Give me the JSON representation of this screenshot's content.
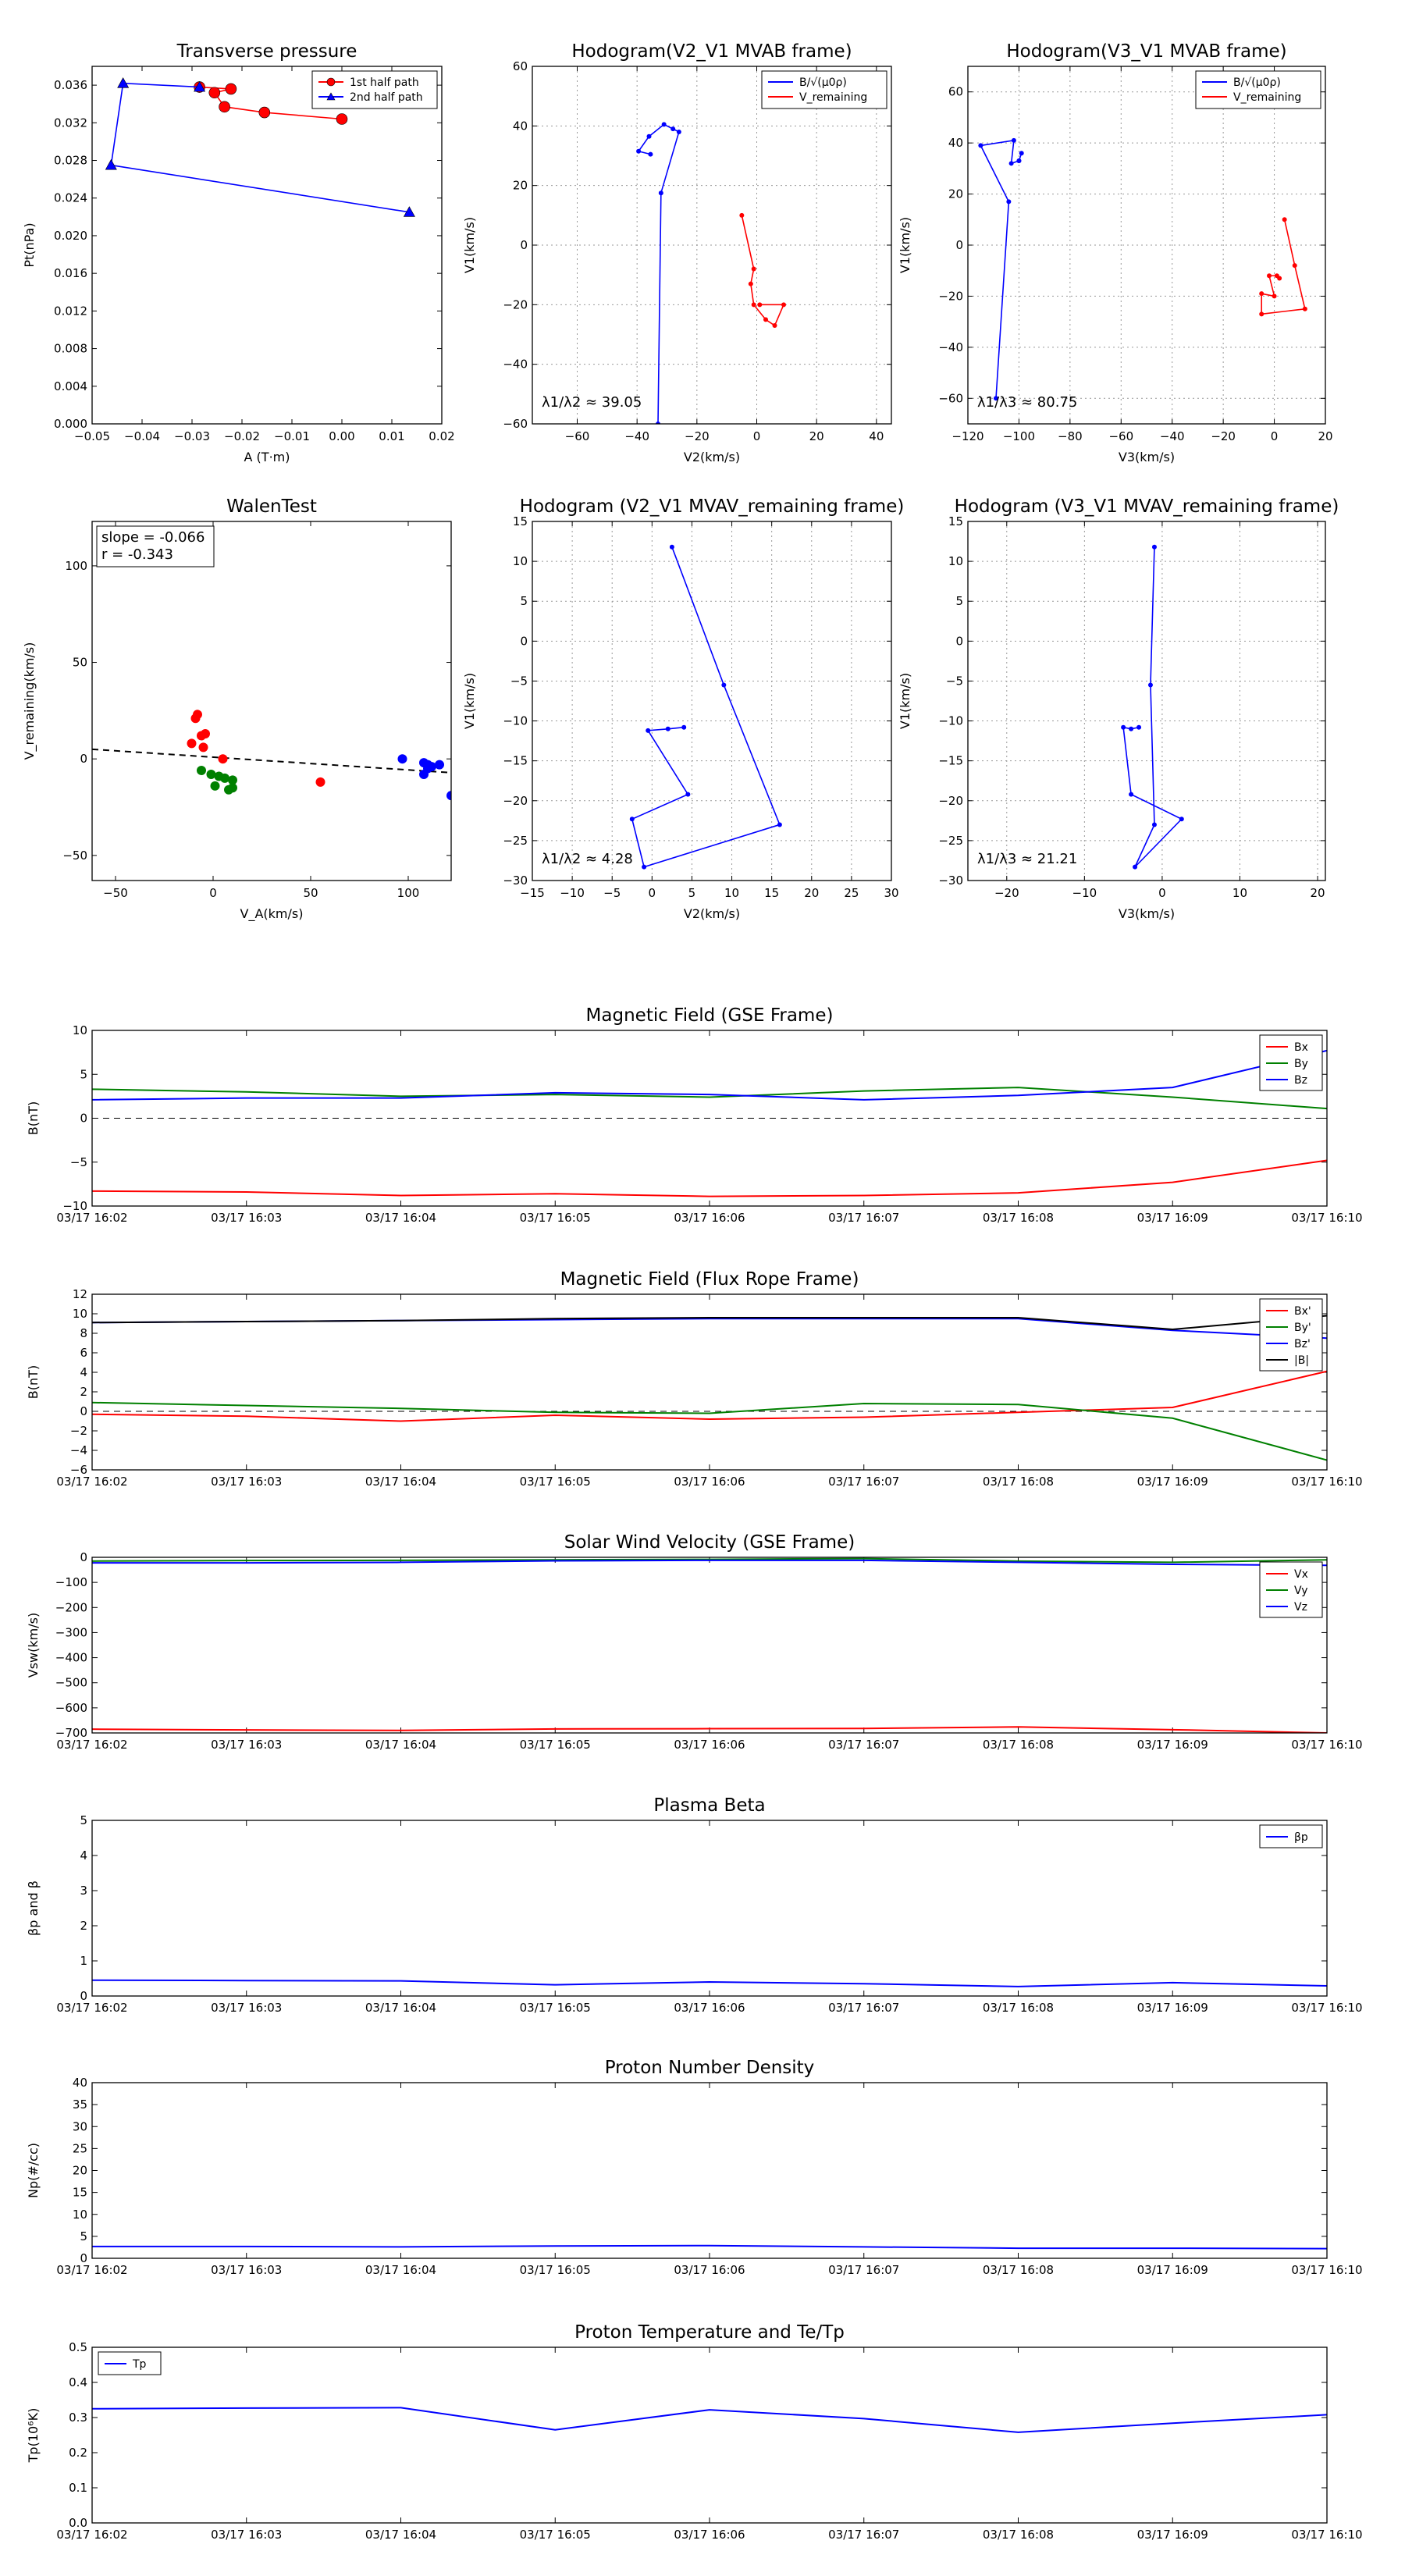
{
  "colors": {
    "red": "#ff0000",
    "green": "#008000",
    "blue": "#0000ff",
    "black": "#000000",
    "grid": "#b0b0b0"
  },
  "time_ticks": [
    "03/17 16:02",
    "03/17 16:03",
    "03/17 16:04",
    "03/17 16:05",
    "03/17 16:06",
    "03/17 16:07",
    "03/17 16:08",
    "03/17 16:09",
    "03/17 16:10"
  ],
  "chart_data": [
    {
      "id": "tp",
      "type": "scatter",
      "title": "Transverse pressure",
      "xlabel": "A (T·m)",
      "ylabel": "Pt(nPa)",
      "xlim": [
        -0.05,
        0.02
      ],
      "ylim": [
        0.0,
        0.038
      ],
      "xticks": [
        -0.05,
        -0.04,
        -0.03,
        -0.02,
        -0.01,
        0.0,
        0.01,
        0.02
      ],
      "yticks": [
        0.0,
        0.004,
        0.008,
        0.012,
        0.016,
        0.02,
        0.024,
        0.028,
        0.032,
        0.036
      ],
      "xtick_labels": [
        "−0.05",
        "−0.04",
        "−0.03",
        "−0.02",
        "−0.01",
        "0.00",
        "0.01",
        "0.02"
      ],
      "ytick_labels": [
        "0.000",
        "0.004",
        "0.008",
        "0.012",
        "0.016",
        "0.020",
        "0.024",
        "0.028",
        "0.032",
        "0.036"
      ],
      "legend_loc": "top-right",
      "series": [
        {
          "name": "1st half path",
          "color": "#ff0000",
          "marker": "circle",
          "x": [
            0.0,
            -0.0155,
            -0.0235,
            -0.0255,
            -0.0222,
            -0.0285
          ],
          "y": [
            0.0324,
            0.0331,
            0.0337,
            0.0352,
            0.0356,
            0.0358
          ]
        },
        {
          "name": "2nd half path",
          "color": "#0000ff",
          "marker": "triangle",
          "x": [
            -0.0285,
            -0.0438,
            -0.0462,
            0.0135
          ],
          "y": [
            0.0358,
            0.0362,
            0.0275,
            0.0225
          ]
        }
      ]
    },
    {
      "id": "h1",
      "type": "line",
      "title": "Hodogram(V2_V1 MVAB frame)",
      "xlabel": "V2(km/s)",
      "ylabel": "V1(km/s)",
      "xlim": [
        -75,
        45
      ],
      "ylim": [
        -60,
        60
      ],
      "xticks": [
        -60,
        -40,
        -20,
        0,
        20,
        40
      ],
      "yticks": [
        -60,
        -40,
        -20,
        0,
        20,
        40,
        60
      ],
      "xtick_labels": [
        "−60",
        "−40",
        "−20",
        "0",
        "20",
        "40"
      ],
      "ytick_labels": [
        "−60",
        "−40",
        "−20",
        "0",
        "20",
        "40",
        "60"
      ],
      "grid": true,
      "legend_loc": "top-right",
      "annotation": "λ1/λ2 ≈ 39.05",
      "series": [
        {
          "name": "B/√(μ0ρ)",
          "color": "#0000ff",
          "x": [
            -35.5,
            -39.5,
            -36,
            -31,
            -28,
            -26,
            -32,
            -33
          ],
          "y": [
            30.5,
            31.5,
            36.5,
            40.5,
            39,
            38,
            17.5,
            -60
          ]
        },
        {
          "name": "V_remaining",
          "color": "#ff0000",
          "x": [
            -5,
            -1,
            -2,
            -1,
            3,
            6,
            9,
            1
          ],
          "y": [
            10,
            -8,
            -13,
            -20,
            -25,
            -27,
            -20,
            -20
          ]
        }
      ]
    },
    {
      "id": "h2",
      "type": "line",
      "title": "Hodogram(V3_V1 MVAB frame)",
      "xlabel": "V3(km/s)",
      "ylabel": "V1(km/s)",
      "xlim": [
        -120,
        20
      ],
      "ylim": [
        -70,
        70
      ],
      "xticks": [
        -120,
        -100,
        -80,
        -60,
        -40,
        -20,
        0,
        20
      ],
      "yticks": [
        -60,
        -40,
        -20,
        0,
        20,
        40,
        60
      ],
      "xtick_labels": [
        "−120",
        "−100",
        "−80",
        "−60",
        "−40",
        "−20",
        "0",
        "20"
      ],
      "ytick_labels": [
        "−60",
        "−40",
        "−20",
        "0",
        "20",
        "40",
        "60"
      ],
      "grid": true,
      "legend_loc": "top-right",
      "annotation": "λ1/λ3 ≈ 80.75",
      "series": [
        {
          "name": "B/√(μ0ρ)",
          "color": "#0000ff",
          "x": [
            -100,
            -99,
            -100,
            -103,
            -102,
            -115,
            -104,
            -109
          ],
          "y": [
            33,
            36,
            33,
            32,
            41,
            39,
            17,
            -60
          ]
        },
        {
          "name": "V_remaining",
          "color": "#ff0000",
          "x": [
            4,
            8,
            12,
            -5,
            -5,
            0,
            -2,
            1,
            2
          ],
          "y": [
            10,
            -8,
            -25,
            -27,
            -19,
            -20,
            -12,
            -12,
            -13
          ]
        }
      ]
    },
    {
      "id": "walen",
      "type": "scatter",
      "title": "WalenTest",
      "xlabel": "V_A(km/s)",
      "ylabel": "V_remaining(km/s)",
      "xlim": [
        -62,
        122
      ],
      "ylim": [
        -63,
        123
      ],
      "xticks": [
        -50,
        0,
        50,
        100
      ],
      "yticks": [
        -50,
        0,
        50,
        100
      ],
      "xtick_labels": [
        "−50",
        "0",
        "50",
        "100"
      ],
      "ytick_labels": [
        "−50",
        "0",
        "50",
        "100"
      ],
      "annotation_lines": [
        "slope = -0.066",
        "r = -0.343"
      ],
      "fit": {
        "slope": -0.066,
        "intercept": 0.9
      },
      "series": [
        {
          "color": "#ff0000",
          "x": [
            -9,
            -8,
            -6,
            -4,
            -11,
            -5,
            5,
            55
          ],
          "y": [
            21,
            23,
            12,
            13,
            8,
            6,
            0,
            -12
          ]
        },
        {
          "color": "#008000",
          "x": [
            -6,
            -1,
            3,
            6,
            10,
            1,
            10,
            8
          ],
          "y": [
            -6,
            -8,
            -9,
            -10,
            -11,
            -14,
            -15,
            -16
          ]
        },
        {
          "color": "#0000ff",
          "x": [
            97,
            108,
            110,
            112,
            116,
            108,
            110,
            122
          ],
          "y": [
            0,
            -2,
            -3,
            -4,
            -3,
            -8,
            -5,
            -19
          ]
        }
      ]
    },
    {
      "id": "h3",
      "type": "line",
      "title": "Hodogram (V2_V1 MVAV_remaining frame)",
      "xlabel": "V2(km/s)",
      "ylabel": "V1(km/s)",
      "xlim": [
        -15,
        30
      ],
      "ylim": [
        -30,
        15
      ],
      "xticks": [
        -15,
        -10,
        -5,
        0,
        5,
        10,
        15,
        20,
        25,
        30
      ],
      "yticks": [
        -30,
        -25,
        -20,
        -15,
        -10,
        -5,
        0,
        5,
        10,
        15
      ],
      "xtick_labels": [
        "−15",
        "−10",
        "−5",
        "0",
        "5",
        "10",
        "15",
        "20",
        "25",
        "30"
      ],
      "ytick_labels": [
        "−30",
        "−25",
        "−20",
        "−15",
        "−10",
        "−5",
        "0",
        "5",
        "10",
        "15"
      ],
      "grid": true,
      "annotation": "λ1/λ2 ≈ 4.28",
      "series": [
        {
          "color": "#0000ff",
          "x": [
            4,
            2,
            -0.5,
            4.5,
            -2.5,
            -1,
            16,
            9,
            2.5
          ],
          "y": [
            -10.8,
            -11,
            -11.2,
            -19.2,
            -22.3,
            -28.3,
            -23,
            -5.5,
            11.8
          ]
        }
      ]
    },
    {
      "id": "h4",
      "type": "line",
      "title": "Hodogram (V3_V1 MVAV_remaining frame)",
      "xlabel": "V3(km/s)",
      "ylabel": "V1(km/s)",
      "xlim": [
        -25,
        21
      ],
      "ylim": [
        -30,
        15
      ],
      "xticks": [
        -20,
        -10,
        0,
        10,
        20
      ],
      "yticks": [
        -30,
        -25,
        -20,
        -15,
        -10,
        -5,
        0,
        5,
        10,
        15
      ],
      "xtick_labels": [
        "−20",
        "−10",
        "0",
        "10",
        "20"
      ],
      "ytick_labels": [
        "−30",
        "−25",
        "−20",
        "−15",
        "−10",
        "−5",
        "0",
        "5",
        "10",
        "15"
      ],
      "grid": true,
      "annotation": "λ1/λ3 ≈ 21.21",
      "series": [
        {
          "color": "#0000ff",
          "x": [
            -3,
            -4,
            -5,
            -4,
            2.5,
            -3.5,
            -1,
            -1.5,
            -1
          ],
          "y": [
            -10.8,
            -11,
            -10.8,
            -19.2,
            -22.3,
            -28.3,
            -23,
            -5.5,
            11.8
          ]
        }
      ]
    },
    {
      "id": "bgse",
      "type": "line",
      "title": "Magnetic Field (GSE Frame)",
      "ylabel": "B(nT)",
      "ylim": [
        -10,
        10
      ],
      "yticks": [
        -10,
        -5,
        0,
        5,
        10
      ],
      "ytick_labels": [
        "−10",
        "−5",
        "0",
        "5",
        "10"
      ],
      "zero_line": true,
      "legend_loc": "top-right",
      "x": [
        "16:02",
        "16:03",
        "16:04",
        "16:05",
        "16:06",
        "16:07",
        "16:08",
        "16:09",
        "16:10"
      ],
      "series": [
        {
          "name": "Bx",
          "color": "#ff0000",
          "values": [
            -8.3,
            -8.4,
            -8.8,
            -8.6,
            -8.9,
            -8.8,
            -8.5,
            -7.3,
            -4.8
          ]
        },
        {
          "name": "By",
          "color": "#008000",
          "values": [
            3.3,
            3.0,
            2.5,
            2.7,
            2.4,
            3.1,
            3.5,
            2.4,
            1.1
          ]
        },
        {
          "name": "Bz",
          "color": "#0000ff",
          "values": [
            2.1,
            2.3,
            2.3,
            2.9,
            2.7,
            2.1,
            2.6,
            3.5,
            7.7
          ]
        }
      ]
    },
    {
      "id": "bfr",
      "type": "line",
      "title": "Magnetic Field (Flux Rope Frame)",
      "ylabel": "B(nT)",
      "ylim": [
        -6,
        12
      ],
      "yticks": [
        -6,
        -4,
        -2,
        0,
        2,
        4,
        6,
        8,
        10,
        12
      ],
      "ytick_labels": [
        "−6",
        "−4",
        "−2",
        "0",
        "2",
        "4",
        "6",
        "8",
        "10",
        "12"
      ],
      "zero_line": true,
      "legend_loc": "top-right",
      "x": [
        "16:02",
        "16:03",
        "16:04",
        "16:05",
        "16:06",
        "16:07",
        "16:08",
        "16:09",
        "16:10"
      ],
      "series": [
        {
          "name": "Bx'",
          "color": "#ff0000",
          "values": [
            -0.3,
            -0.5,
            -1.0,
            -0.4,
            -0.8,
            -0.6,
            -0.1,
            0.4,
            4.1
          ]
        },
        {
          "name": "By'",
          "color": "#008000",
          "values": [
            0.9,
            0.6,
            0.3,
            -0.1,
            -0.2,
            0.8,
            0.7,
            -0.7,
            -5.0
          ]
        },
        {
          "name": "Bz'",
          "color": "#0000ff",
          "values": [
            9.1,
            9.2,
            9.3,
            9.4,
            9.5,
            9.5,
            9.5,
            8.3,
            7.5
          ]
        },
        {
          "name": "|B|",
          "color": "#000000",
          "values": [
            9.1,
            9.2,
            9.3,
            9.5,
            9.6,
            9.6,
            9.6,
            8.4,
            9.8
          ]
        }
      ]
    },
    {
      "id": "vsw",
      "type": "line",
      "title": "Solar Wind Velocity (GSE Frame)",
      "ylabel": "Vsw(km/s)",
      "ylim": [
        -700,
        0
      ],
      "yticks": [
        -700,
        -600,
        -500,
        -400,
        -300,
        -200,
        -100,
        0
      ],
      "ytick_labels": [
        "−700",
        "−600",
        "−500",
        "−400",
        "−300",
        "−200",
        "−100",
        "0"
      ],
      "legend_loc": "top-right",
      "x": [
        "16:02",
        "16:03",
        "16:04",
        "16:05",
        "16:06",
        "16:07",
        "16:08",
        "16:09",
        "16:10"
      ],
      "series": [
        {
          "name": "Vx",
          "color": "#ff0000",
          "values": [
            -685,
            -688,
            -690,
            -684,
            -683,
            -682,
            -676,
            -687,
            -700
          ]
        },
        {
          "name": "Vy",
          "color": "#008000",
          "values": [
            -15,
            -13,
            -12,
            -10,
            -8,
            -5,
            -15,
            -20,
            -10
          ]
        },
        {
          "name": "Vz",
          "color": "#0000ff",
          "values": [
            -22,
            -22,
            -20,
            -14,
            -12,
            -12,
            -20,
            -28,
            -32
          ]
        }
      ]
    },
    {
      "id": "beta",
      "type": "line",
      "title": "Plasma Beta",
      "ylabel": "βp and β",
      "ylim": [
        0,
        5
      ],
      "yticks": [
        0,
        1,
        2,
        3,
        4,
        5
      ],
      "ytick_labels": [
        "0",
        "1",
        "2",
        "3",
        "4",
        "5"
      ],
      "legend_loc": "top-right",
      "x": [
        "16:02",
        "16:03",
        "16:04",
        "16:05",
        "16:06",
        "16:07",
        "16:08",
        "16:09",
        "16:10"
      ],
      "series": [
        {
          "name": "βp",
          "color": "#0000ff",
          "values": [
            0.45,
            0.44,
            0.43,
            0.32,
            0.4,
            0.35,
            0.27,
            0.38,
            0.29
          ]
        }
      ]
    },
    {
      "id": "np",
      "type": "line",
      "title": "Proton Number Density",
      "ylabel": "Np(#/cc)",
      "ylim": [
        0,
        40
      ],
      "yticks": [
        0,
        5,
        10,
        15,
        20,
        25,
        30,
        35,
        40
      ],
      "ytick_labels": [
        "0",
        "5",
        "10",
        "15",
        "20",
        "25",
        "30",
        "35",
        "40"
      ],
      "x": [
        "16:02",
        "16:03",
        "16:04",
        "16:05",
        "16:06",
        "16:07",
        "16:08",
        "16:09",
        "16:10"
      ],
      "series": [
        {
          "color": "#0000ff",
          "values": [
            2.7,
            2.7,
            2.6,
            2.8,
            2.9,
            2.6,
            2.3,
            2.3,
            2.2
          ]
        }
      ]
    },
    {
      "id": "tp2",
      "type": "line",
      "title": "Proton Temperature and Te/Tp",
      "ylabel": "Tp(10⁶K)",
      "ylim": [
        0,
        0.5
      ],
      "yticks": [
        0.0,
        0.1,
        0.2,
        0.3,
        0.4,
        0.5
      ],
      "ytick_labels": [
        "0.0",
        "0.1",
        "0.2",
        "0.3",
        "0.4",
        "0.5"
      ],
      "legend_loc": "top-left",
      "x": [
        "16:02",
        "16:03",
        "16:04",
        "16:05",
        "16:06",
        "16:07",
        "16:08",
        "16:09",
        "16:10"
      ],
      "series": [
        {
          "name": "Tp",
          "color": "#0000ff",
          "values": [
            0.325,
            0.327,
            0.328,
            0.265,
            0.322,
            0.297,
            0.258,
            0.284,
            0.308
          ]
        }
      ]
    }
  ]
}
